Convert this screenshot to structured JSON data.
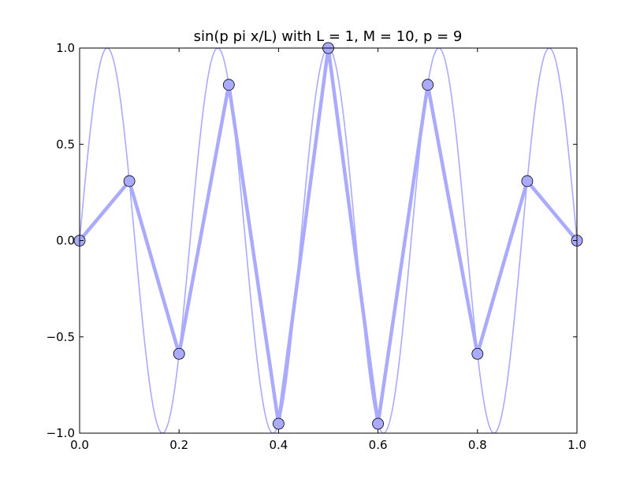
{
  "chart_data": {
    "type": "line",
    "title": "sin(p pi x/L) with L = 1, M = 10, p = 9",
    "xlabel": "",
    "ylabel": "",
    "xlim": [
      0.0,
      1.0
    ],
    "ylim": [
      -1.0,
      1.0
    ],
    "grid": false,
    "xticks": [
      0.0,
      0.2,
      0.4,
      0.6,
      0.8,
      1.0
    ],
    "yticks": [
      -1.0,
      -0.5,
      0.0,
      0.5,
      1.0
    ],
    "xtick_labels": [
      "0.0",
      "0.2",
      "0.4",
      "0.6",
      "0.8",
      "1.0"
    ],
    "ytick_labels": [
      "−1.0",
      "−0.5",
      "0.0",
      "0.5",
      "1.0"
    ],
    "series": [
      {
        "kind": "continuous",
        "function": "sin(9*pi*x)",
        "color": "#aaaaff",
        "style": "thin line"
      },
      {
        "kind": "sampled",
        "color": "#aaaaff",
        "marker_color": "#aaaaff",
        "style": "thick line with circle markers",
        "x": [
          0.0,
          0.1,
          0.2,
          0.3,
          0.4,
          0.5,
          0.6,
          0.7,
          0.8,
          0.9,
          1.0
        ],
        "y": [
          0.0,
          0.309,
          -0.588,
          0.809,
          -0.951,
          1.0,
          -0.951,
          0.809,
          -0.588,
          0.309,
          0.0
        ]
      }
    ]
  }
}
